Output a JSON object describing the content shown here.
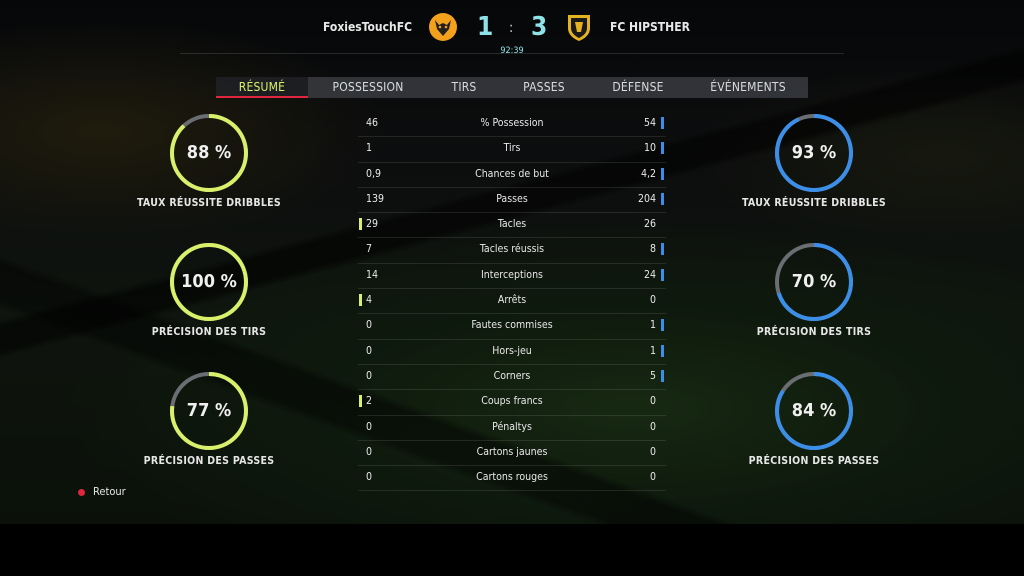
{
  "header": {
    "home_team": "FoxiesTouchFC",
    "away_team": "FC HIPSTHER",
    "home_score": "1",
    "away_score": "3",
    "separator": ":",
    "clock": "92:39",
    "home_crest": "wolf-crest-icon",
    "away_crest": "shield-crest-icon"
  },
  "tabs": [
    {
      "label": "RÉSUMÉ",
      "active": true
    },
    {
      "label": "POSSESSION"
    },
    {
      "label": "TIRS"
    },
    {
      "label": "PASSES"
    },
    {
      "label": "DÉFENSE"
    },
    {
      "label": "ÉVÉNEMENTS"
    }
  ],
  "stats": [
    {
      "home": "46",
      "label": "% Possession",
      "away": "54",
      "leader": "away"
    },
    {
      "home": "1",
      "label": "Tirs",
      "away": "10",
      "leader": "away"
    },
    {
      "home": "0,9",
      "label": "Chances de but",
      "away": "4,2",
      "leader": "away"
    },
    {
      "home": "139",
      "label": "Passes",
      "away": "204",
      "leader": "away"
    },
    {
      "home": "29",
      "label": "Tacles",
      "away": "26",
      "leader": "home"
    },
    {
      "home": "7",
      "label": "Tacles réussis",
      "away": "8",
      "leader": "away"
    },
    {
      "home": "14",
      "label": "Interceptions",
      "away": "24",
      "leader": "away"
    },
    {
      "home": "4",
      "label": "Arrêts",
      "away": "0",
      "leader": "home"
    },
    {
      "home": "0",
      "label": "Fautes commises",
      "away": "1",
      "leader": "away"
    },
    {
      "home": "0",
      "label": "Hors-jeu",
      "away": "1",
      "leader": "away"
    },
    {
      "home": "0",
      "label": "Corners",
      "away": "5",
      "leader": "away"
    },
    {
      "home": "2",
      "label": "Coups francs",
      "away": "0",
      "leader": "home"
    },
    {
      "home": "0",
      "label": "Pénaltys",
      "away": "0",
      "leader": "none"
    },
    {
      "home": "0",
      "label": "Cartons jaunes",
      "away": "0",
      "leader": "none"
    },
    {
      "home": "0",
      "label": "Cartons rouges",
      "away": "0",
      "leader": "none"
    }
  ],
  "rings": {
    "home": [
      {
        "value": "88 %",
        "fraction": 0.88,
        "label": "TAUX RÉUSSITE DRIBBLES"
      },
      {
        "value": "100 %",
        "fraction": 1.0,
        "label": "PRÉCISION DES TIRS"
      },
      {
        "value": "77 %",
        "fraction": 0.77,
        "label": "PRÉCISION DES PASSES"
      }
    ],
    "away": [
      {
        "value": "93 %",
        "fraction": 0.93,
        "label": "TAUX RÉUSSITE DRIBBLES"
      },
      {
        "value": "70 %",
        "fraction": 0.7,
        "label": "PRÉCISION DES TIRS"
      },
      {
        "value": "84 %",
        "fraction": 0.84,
        "label": "PRÉCISION DES PASSES"
      }
    ]
  },
  "colors": {
    "home_accent": "#d8f06a",
    "away_accent": "#3c8fe8",
    "ring_track": "#6a6e72",
    "score": "#8fe3e8",
    "back_button": "#e0263e"
  },
  "footer": {
    "back_label": "Retour",
    "back_button_icon": "b-button-icon"
  }
}
